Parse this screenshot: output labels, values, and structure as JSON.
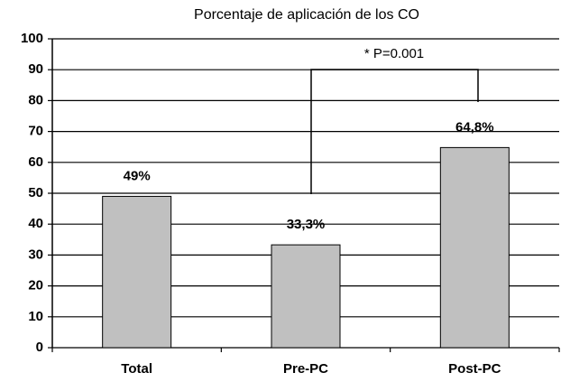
{
  "chart_data": {
    "type": "bar",
    "title": "Porcentaje de aplicación de los CO",
    "categories": [
      "Total",
      "Pre-PC",
      "Post-PC"
    ],
    "values": [
      49,
      33.3,
      64.8
    ],
    "value_labels": [
      "49%",
      "33,3%",
      "64,8%"
    ],
    "color": "#c0c0c0",
    "ylim": [
      0,
      100
    ],
    "yticks": [
      0,
      10,
      20,
      30,
      40,
      50,
      60,
      70,
      80,
      90,
      100
    ],
    "grid": true,
    "annotation": "* P=0.001"
  }
}
